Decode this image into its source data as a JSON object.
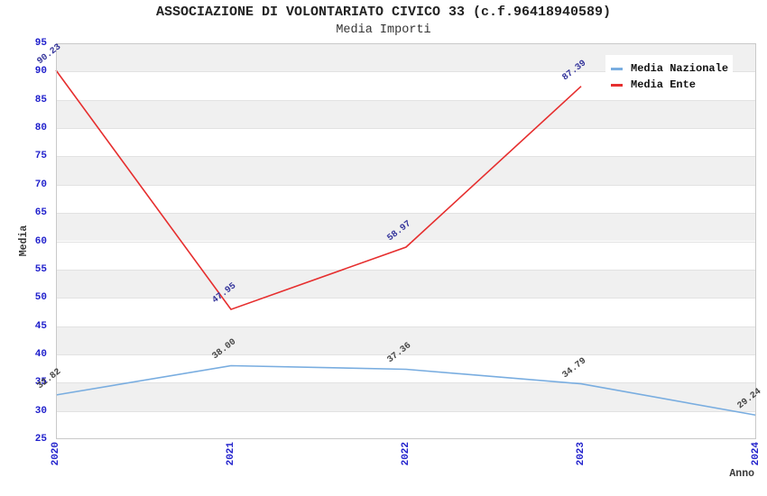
{
  "chart_data": {
    "type": "line",
    "title": "ASSOCIAZIONE DI VOLONTARIATO CIVICO 33 (c.f.96418940589)",
    "subtitle": "Media Importi",
    "xlabel": "Anno",
    "ylabel": "Media",
    "x": [
      "2020",
      "2021",
      "2022",
      "2023",
      "2024"
    ],
    "ylim": [
      25,
      95
    ],
    "ytick_step": 5,
    "grid": "horizontal-bands-alternating",
    "legend_position": "top-right",
    "point_label_decimals": 2,
    "series": [
      {
        "name": "Media Nazionale",
        "color": "#79ade0",
        "label_color": "#444444",
        "values": [
          32.82,
          38.0,
          37.36,
          34.79,
          29.24
        ]
      },
      {
        "name": "Media Ente",
        "color": "#e62e2e",
        "label_color": "#34349b",
        "values": [
          90.23,
          47.95,
          58.97,
          87.39,
          null
        ]
      }
    ],
    "style": {
      "tick_color": "#2121cc",
      "band_color": "#f0f0f0",
      "grid_color": "#e2e2e2",
      "border_color": "#c9c9c9",
      "title_color": "#222222",
      "axis_title_color": "#3a3a3a"
    }
  }
}
